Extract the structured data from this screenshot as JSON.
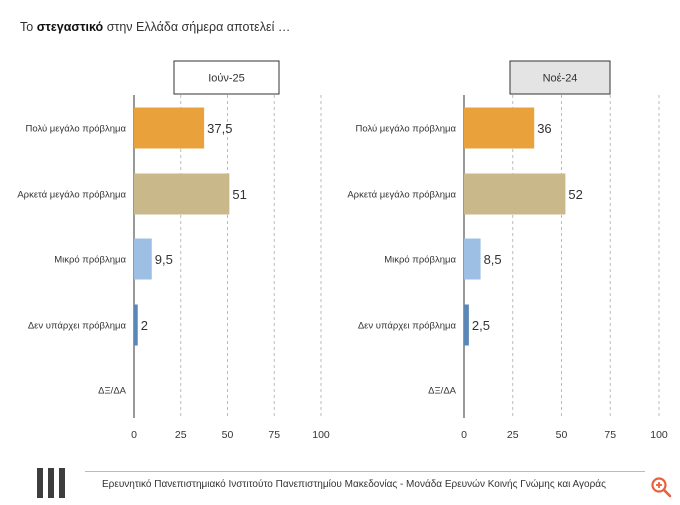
{
  "header": {
    "title_prefix": "Το",
    "title_bold": "στεγαστικό",
    "title_suffix": "στην Ελλάδα σήμερα αποτελεί …"
  },
  "colors": {
    "orange": "#E9A23B",
    "tan": "#C9B98A",
    "lightblue": "#9DBFE3",
    "blue": "#5B87B8",
    "grid": "#BBBBBB",
    "axis": "#555555",
    "legend_box_1": "#FFFFFF",
    "legend_box_2": "#E4E4E4"
  },
  "chart_data": [
    {
      "type": "bar",
      "orientation": "horizontal",
      "title": "Ιούν-25",
      "categories": [
        "Πολύ μεγάλο πρόβλημα",
        "Αρκετά μεγάλο πρόβλημα",
        "Μικρό πρόβλημα",
        "Δεν υπάρχει πρόβλημα",
        "ΔΞ/ΔΑ"
      ],
      "values": [
        37.5,
        51,
        9.5,
        2,
        null
      ],
      "labels": [
        "37,5",
        "51",
        "9,5",
        "2",
        ""
      ],
      "bar_colors": [
        "orange",
        "tan",
        "lightblue",
        "blue",
        "blue"
      ],
      "xlim": [
        0,
        100
      ],
      "xticks": [
        0,
        25,
        50,
        75,
        100
      ],
      "grid": "dashed vertical"
    },
    {
      "type": "bar",
      "orientation": "horizontal",
      "title": "Νοέ-24",
      "categories": [
        "Πολύ μεγάλο πρόβλημα",
        "Αρκετά μεγάλο πρόβλημα",
        "Μικρό πρόβλημα",
        "Δεν υπάρχει πρόβλημα",
        "ΔΞ/ΔΑ"
      ],
      "values": [
        36,
        52,
        8.5,
        2.5,
        null
      ],
      "labels": [
        "36",
        "52",
        "8,5",
        "2,5",
        ""
      ],
      "bar_colors": [
        "orange",
        "tan",
        "lightblue",
        "blue",
        "blue"
      ],
      "xlim": [
        0,
        100
      ],
      "xticks": [
        0,
        25,
        50,
        75,
        100
      ],
      "grid": "dashed vertical"
    }
  ],
  "footer": {
    "text": "Ερευνητικό Πανεπιστημιακό Ινστιτούτο Πανεπιστημίου Μακεδονίας - Μονάδα Ερευνών Κοινής Γνώμης και Αγοράς",
    "zoom_icon": "zoom-in-icon"
  }
}
